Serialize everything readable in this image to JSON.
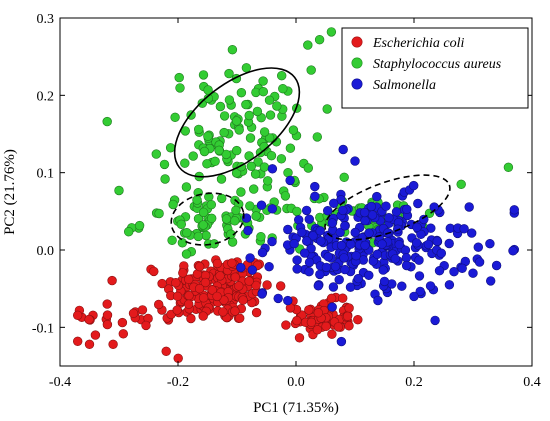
{
  "chart_data": {
    "type": "scatter",
    "xlabel": "PC1 (71.35%)",
    "ylabel": "PC2 (21.76%)",
    "xlim": [
      -0.4,
      0.4
    ],
    "ylim": [
      -0.15,
      0.3
    ],
    "x_ticks": [
      "-0.4",
      "-0.2",
      "0.0",
      "0.2",
      "0.4"
    ],
    "y_ticks": [
      "-0.1",
      "0.0",
      "0.1",
      "0.2",
      "0.3"
    ],
    "x_tick_values": [
      -0.4,
      -0.2,
      0.0,
      0.2,
      0.4
    ],
    "y_tick_values": [
      -0.1,
      0.0,
      0.1,
      0.2,
      0.3
    ],
    "grid": false,
    "legend_position": "top-right",
    "series": [
      {
        "name": "Escherichia coli",
        "color": "#e31a1c",
        "clusters": [
          {
            "cx": -0.13,
            "cy": -0.05,
            "sx": 0.045,
            "sy": 0.022,
            "n": 190
          },
          {
            "cx": 0.045,
            "cy": -0.088,
            "sx": 0.025,
            "sy": 0.011,
            "n": 75
          },
          {
            "cx": -0.26,
            "cy": -0.085,
            "sx": 0.05,
            "sy": 0.015,
            "n": 25
          }
        ],
        "points": [
          [
            -0.37,
            -0.118
          ],
          [
            -0.34,
            -0.11
          ],
          [
            -0.35,
            -0.122
          ],
          [
            -0.31,
            -0.122
          ],
          [
            -0.32,
            -0.07
          ],
          [
            -0.22,
            -0.131
          ]
        ]
      },
      {
        "name": "Staphylococcus aureus",
        "color": "#33cc33",
        "clusters": [
          {
            "cx": -0.1,
            "cy": 0.145,
            "sx": 0.065,
            "sy": 0.045,
            "n": 130
          },
          {
            "cx": -0.12,
            "cy": 0.035,
            "sx": 0.07,
            "sy": 0.016,
            "n": 75
          },
          {
            "cx": 0.13,
            "cy": 0.045,
            "sx": 0.05,
            "sy": 0.013,
            "n": 45
          }
        ],
        "points": [
          [
            0.06,
            0.282
          ],
          [
            0.04,
            0.272
          ],
          [
            0.02,
            0.265
          ],
          [
            -0.32,
            0.166
          ],
          [
            0.36,
            0.107
          ],
          [
            0.28,
            0.085
          ],
          [
            -0.3,
            0.077
          ]
        ]
      },
      {
        "name": "Salmonella",
        "color": "#1a1ad6",
        "clusters": [
          {
            "cx": 0.12,
            "cy": 0.005,
            "sx": 0.085,
            "sy": 0.032,
            "n": 270
          }
        ],
        "points": [
          [
            0.33,
            -0.04
          ],
          [
            0.34,
            -0.02
          ],
          [
            0.37,
            0.052
          ],
          [
            0.3,
            -0.03
          ],
          [
            0.08,
            0.13
          ],
          [
            0.1,
            0.115
          ],
          [
            -0.04,
            0.105
          ],
          [
            -0.01,
            0.09
          ],
          [
            0.26,
            -0.045
          ],
          [
            0.2,
            -0.06
          ]
        ]
      }
    ],
    "ellipses": [
      {
        "series": "Staphylococcus aureus",
        "style": "solid",
        "cx": -0.1,
        "cy": 0.165,
        "rx": 0.2,
        "ry": 0.05,
        "angle_deg": 38
      },
      {
        "series": "Staphylococcus aureus",
        "style": "dashed",
        "cx": -0.15,
        "cy": 0.04,
        "rx": 0.1,
        "ry": 0.033,
        "angle_deg": 10
      },
      {
        "series": "Staphylococcus aureus",
        "style": "dashed",
        "cx": 0.155,
        "cy": 0.055,
        "rx": 0.18,
        "ry": 0.032,
        "angle_deg": 20
      }
    ]
  }
}
